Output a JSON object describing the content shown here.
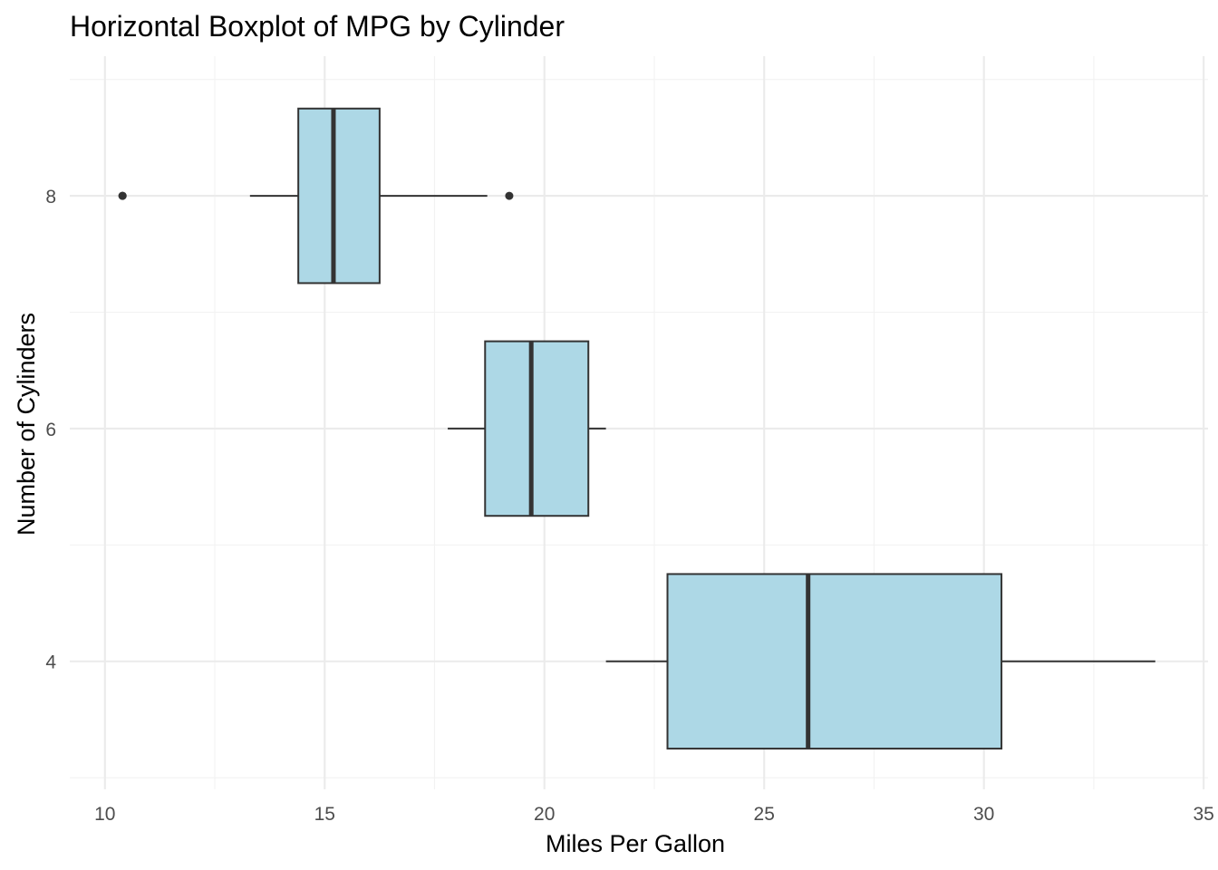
{
  "chart_data": {
    "type": "boxplot",
    "orientation": "horizontal",
    "title": "Horizontal Boxplot of MPG by Cylinder",
    "xlabel": "Miles Per Gallon",
    "ylabel": "Number of Cylinders",
    "xlim": [
      9.2,
      35.1
    ],
    "ylim": [
      2.9,
      9.2
    ],
    "x_ticks": [
      10,
      15,
      20,
      25,
      30,
      35
    ],
    "y_ticks": [
      4,
      6,
      8
    ],
    "grid": true,
    "box_fill": "#add8e6",
    "box_stroke": "#333333",
    "series": [
      {
        "category": "4",
        "y": 4,
        "min": 21.4,
        "q1": 22.8,
        "median": 26.0,
        "q3": 30.4,
        "max": 33.9,
        "outliers": []
      },
      {
        "category": "6",
        "y": 6,
        "min": 17.8,
        "q1": 18.65,
        "median": 19.7,
        "q3": 21.0,
        "max": 21.4,
        "outliers": []
      },
      {
        "category": "8",
        "y": 8,
        "min": 13.3,
        "q1": 14.4,
        "median": 15.2,
        "q3": 16.25,
        "max": 18.7,
        "outliers": [
          10.4,
          10.4,
          19.2
        ]
      }
    ]
  }
}
